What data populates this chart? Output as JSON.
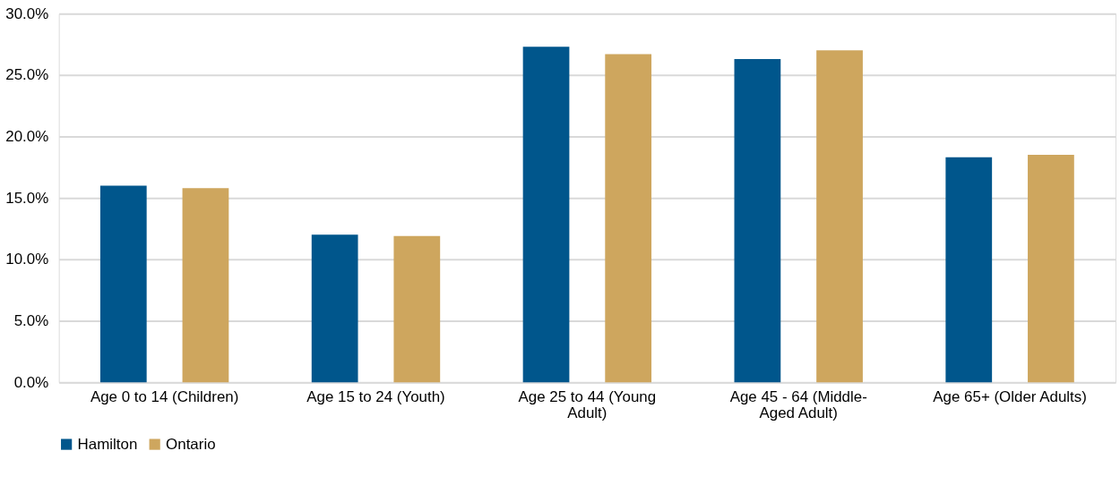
{
  "chart_data": {
    "type": "bar",
    "categories": [
      "Age 0 to 14 (Children)",
      "Age 15 to 24 (Youth)",
      "Age 25 to 44 (Young Adult)",
      "Age 45 - 64 (Middle-Aged Adult)",
      "Age 65+ (Older Adults)"
    ],
    "series": [
      {
        "name": "Hamilton",
        "color": "#00568c",
        "values": [
          16.0,
          12.0,
          27.3,
          26.3,
          18.3
        ]
      },
      {
        "name": "Ontario",
        "color": "#cea65e",
        "values": [
          15.8,
          11.9,
          26.7,
          27.0,
          18.5
        ]
      }
    ],
    "ylim": [
      0,
      30
    ],
    "yticks": [
      {
        "value": 0,
        "label": "0.0%"
      },
      {
        "value": 5,
        "label": "5.0%"
      },
      {
        "value": 10,
        "label": "10.0%"
      },
      {
        "value": 15,
        "label": "15.0%"
      },
      {
        "value": 20,
        "label": "20.0%"
      },
      {
        "value": 25,
        "label": "25.0%"
      },
      {
        "value": 30,
        "label": "30.0%"
      }
    ],
    "grid": "y",
    "legend": "bottom"
  }
}
